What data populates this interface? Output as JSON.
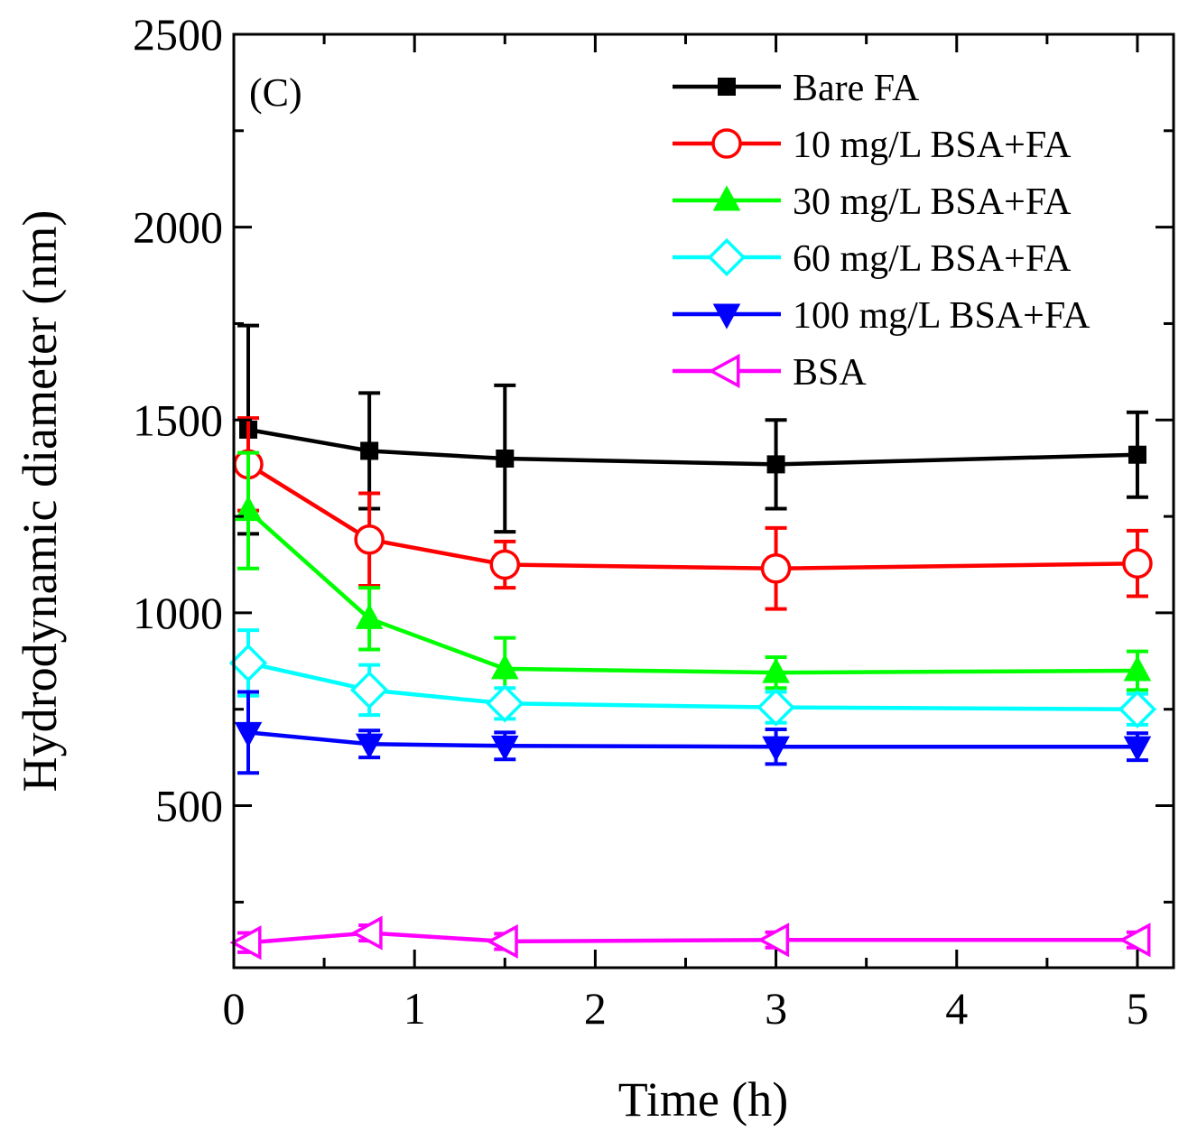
{
  "chart_data": {
    "type": "line",
    "panel_label": "(C)",
    "xlabel": "Time (h)",
    "ylabel": "Hydrodynamic diameter (nm)",
    "xlim": [
      0,
      5.2
    ],
    "ylim": [
      80,
      2500
    ],
    "x_ticks": [
      0,
      1,
      2,
      3,
      4,
      5
    ],
    "x_tick_labels": [
      "0",
      "1",
      "2",
      "3",
      "4",
      "5"
    ],
    "y_ticks": [
      500,
      1000,
      1500,
      2000,
      2500
    ],
    "y_tick_labels": [
      "500",
      "1000",
      "1500",
      "2000",
      "2500"
    ],
    "legend_position": "top-right",
    "x": [
      0.08,
      0.75,
      1.5,
      3,
      5
    ],
    "series": [
      {
        "name": "Bare FA",
        "color": "#000000",
        "marker": "square-filled",
        "values": [
          1475,
          1420,
          1400,
          1385,
          1410
        ],
        "errors": [
          270,
          150,
          190,
          115,
          110
        ]
      },
      {
        "name": "10 mg/L BSA+FA",
        "color": "#ff0000",
        "marker": "circle-open",
        "values": [
          1385,
          1190,
          1125,
          1115,
          1128
        ],
        "errors": [
          120,
          120,
          60,
          105,
          85
        ]
      },
      {
        "name": "30 mg/L BSA+FA",
        "color": "#00ff00",
        "marker": "triangle-up-filled",
        "values": [
          1265,
          985,
          855,
          845,
          850
        ],
        "errors": [
          150,
          80,
          80,
          40,
          50
        ]
      },
      {
        "name": "60 mg/L BSA+FA",
        "color": "#00ffff",
        "marker": "diamond-open",
        "values": [
          870,
          800,
          765,
          755,
          750
        ],
        "errors": [
          85,
          65,
          40,
          40,
          40
        ]
      },
      {
        "name": "100 mg/L BSA+FA",
        "color": "#0000ff",
        "marker": "triangle-down-filled",
        "values": [
          690,
          660,
          655,
          653,
          653
        ],
        "errors": [
          105,
          35,
          35,
          45,
          35
        ]
      },
      {
        "name": "BSA",
        "color": "#ff00ff",
        "marker": "triangle-left-open",
        "values": [
          145,
          170,
          148,
          152,
          152
        ],
        "errors": [
          25,
          20,
          20,
          20,
          20
        ]
      }
    ]
  }
}
